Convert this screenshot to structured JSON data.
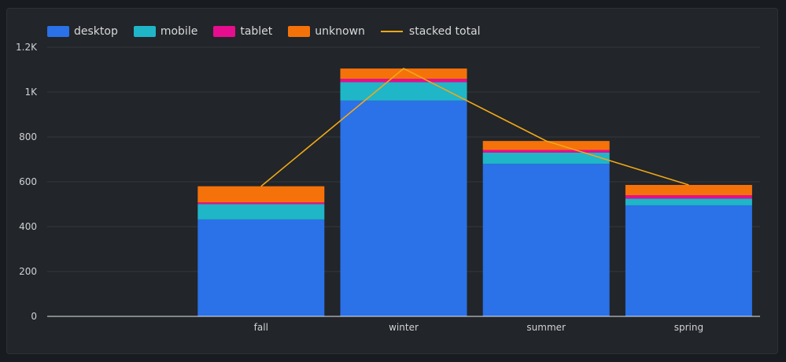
{
  "chart_data": {
    "type": "bar",
    "stacked": true,
    "categories": [
      "",
      "fall",
      "winter",
      "summer",
      "spring"
    ],
    "series": [
      {
        "name": "desktop",
        "color": "#2b71e8",
        "values": [
          null,
          432,
          962,
          680,
          495
        ]
      },
      {
        "name": "mobile",
        "color": "#1fb6c8",
        "values": [
          null,
          68,
          82,
          50,
          30
        ]
      },
      {
        "name": "tablet",
        "color": "#e60e8f",
        "values": [
          null,
          8,
          15,
          12,
          15
        ]
      },
      {
        "name": "unknown",
        "color": "#f5720a",
        "values": [
          null,
          72,
          46,
          40,
          46
        ]
      }
    ],
    "line_series": {
      "name": "stacked total",
      "color": "#f1a817",
      "type": "line",
      "values": [
        null,
        580,
        1105,
        782,
        586
      ]
    },
    "y_ticks": [
      "0",
      "200",
      "400",
      "600",
      "800",
      "1K",
      "1.2K"
    ],
    "y_tick_values": [
      0,
      200,
      400,
      600,
      800,
      1000,
      1200
    ],
    "ylim": [
      0,
      1200
    ],
    "grid": true,
    "legend_position": "top-left",
    "xlabel": "",
    "ylabel": ""
  }
}
